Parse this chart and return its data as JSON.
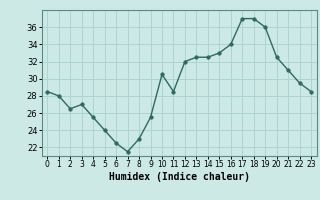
{
  "x": [
    0,
    1,
    2,
    3,
    4,
    5,
    6,
    7,
    8,
    9,
    10,
    11,
    12,
    13,
    14,
    15,
    16,
    17,
    18,
    19,
    20,
    21,
    22,
    23
  ],
  "y": [
    28.5,
    28.0,
    26.5,
    27.0,
    25.5,
    24.0,
    22.5,
    21.5,
    23.0,
    25.5,
    30.5,
    28.5,
    32.0,
    32.5,
    32.5,
    33.0,
    34.0,
    37.0,
    37.0,
    36.0,
    32.5,
    31.0,
    29.5,
    28.5
  ],
  "line_color": "#2e6b5e",
  "marker_color": "#2e6b5e",
  "bg_color": "#cce9e5",
  "grid_color": "#add4cf",
  "xlabel": "Humidex (Indice chaleur)",
  "ylim": [
    21,
    38
  ],
  "xlim": [
    -0.5,
    23.5
  ],
  "yticks": [
    22,
    24,
    26,
    28,
    30,
    32,
    34,
    36
  ],
  "xticks": [
    0,
    1,
    2,
    3,
    4,
    5,
    6,
    7,
    8,
    9,
    10,
    11,
    12,
    13,
    14,
    15,
    16,
    17,
    18,
    19,
    20,
    21,
    22,
    23
  ],
  "linewidth": 1.0,
  "markersize": 2.5
}
